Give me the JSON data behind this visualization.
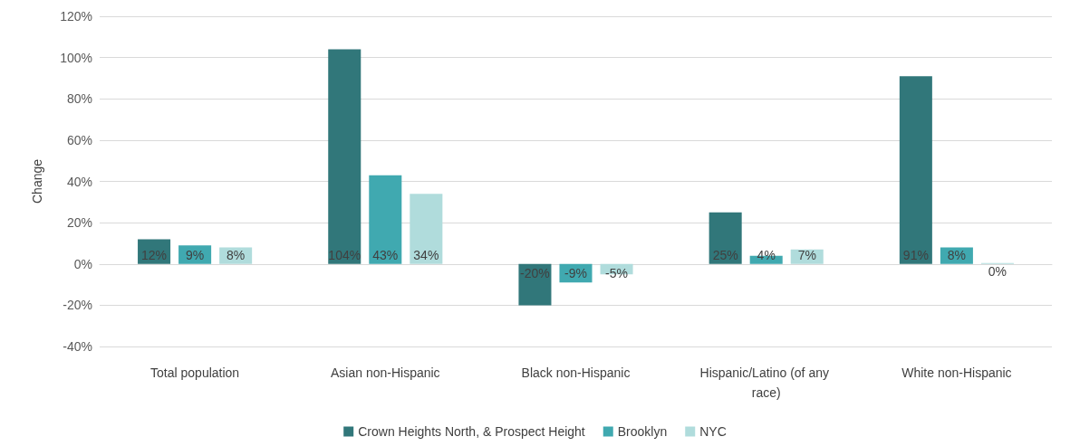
{
  "chart_data": {
    "type": "bar",
    "ylabel": "Change",
    "categories": [
      "Total population",
      "Asian non-Hispanic",
      "Black non-Hispanic",
      "Hispanic/Latino (of any race)",
      "White non-Hispanic"
    ],
    "series": [
      {
        "name": "Crown Heights North, & Prospect Height",
        "color": "#31777a",
        "values": [
          12,
          104,
          -20,
          25,
          91
        ],
        "value_labels": [
          "12%",
          "104%",
          "-20%",
          "25%",
          "91%"
        ]
      },
      {
        "name": "Brooklyn",
        "color": "#40a9b0",
        "values": [
          9,
          43,
          -9,
          4,
          8
        ],
        "value_labels": [
          "9%",
          "43%",
          "-9%",
          "4%",
          "8%"
        ]
      },
      {
        "name": "NYC",
        "color": "#b0dcdc",
        "values": [
          8,
          34,
          -5,
          7,
          0
        ],
        "value_labels": [
          "8%",
          "34%",
          "-5%",
          "7%",
          "0%"
        ]
      }
    ],
    "ylim": [
      -40,
      120
    ],
    "yticks": [
      {
        "value": -40,
        "label": "-40%"
      },
      {
        "value": -20,
        "label": "-20%"
      },
      {
        "value": 0,
        "label": "0%"
      },
      {
        "value": 20,
        "label": "20%"
      },
      {
        "value": 40,
        "label": "40%"
      },
      {
        "value": 60,
        "label": "60%"
      },
      {
        "value": 80,
        "label": "80%"
      },
      {
        "value": 100,
        "label": "100%"
      },
      {
        "value": 120,
        "label": "120%"
      }
    ],
    "grid": "y",
    "legend": "bottom"
  }
}
